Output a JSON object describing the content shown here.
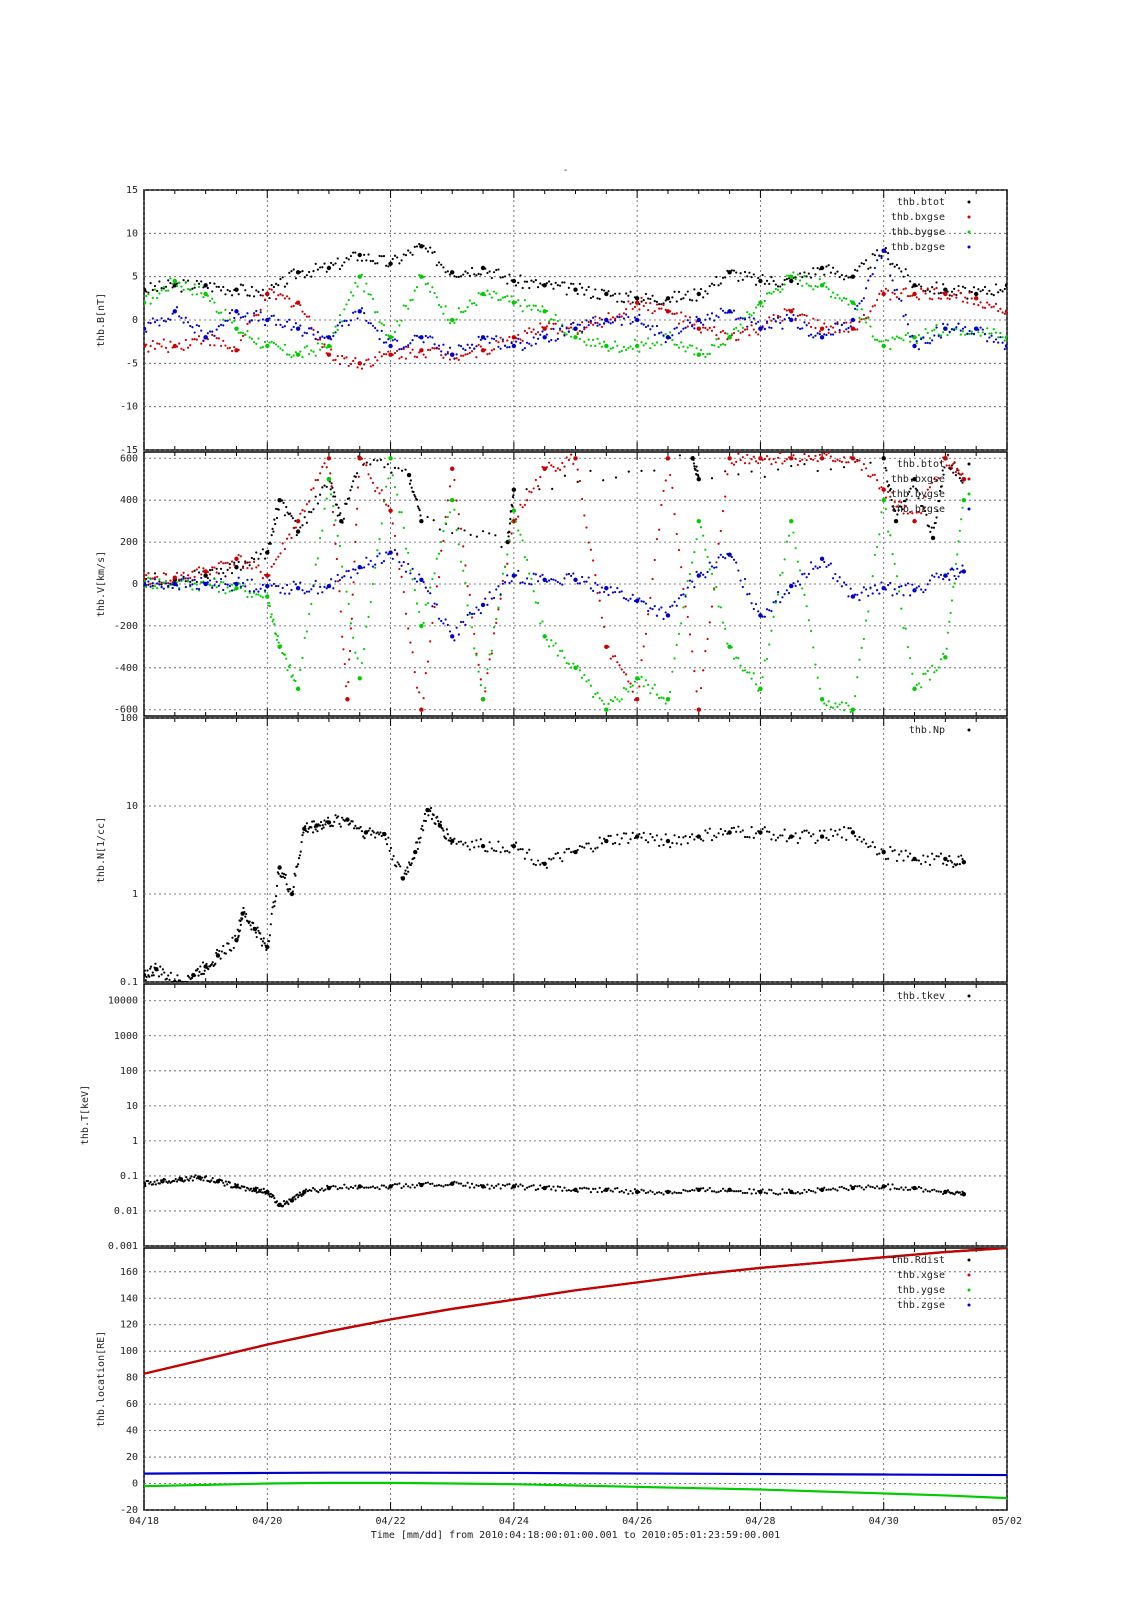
{
  "page_title": "-",
  "x_axis": {
    "tick_labels": [
      "04/18",
      "04/20",
      "04/22",
      "04/24",
      "04/26",
      "04/28",
      "04/30",
      "05/02"
    ],
    "range_days": [
      0,
      14
    ],
    "title": "Time [mm/dd]  from 2010:04:18:00:01:00.001  to  2010:05:01:23:59:00.001"
  },
  "colors": {
    "series1": "#000000",
    "series2": "#cc0000",
    "series3": "#00cc00",
    "series4": "#0000cc",
    "grid": "#555555"
  },
  "chart_data": [
    {
      "type": "scatter",
      "ylabel": "thb.B[nT]",
      "ylim": [
        -15,
        15
      ],
      "yscale": "linear",
      "yticks": [
        -15,
        -10,
        -5,
        0,
        5,
        10,
        15
      ],
      "legend_position": "top-right",
      "series": [
        {
          "name": "thb.btot",
          "color": "#000000",
          "x": [
            0,
            0.5,
            1,
            1.5,
            2,
            2.5,
            3,
            3.5,
            4,
            4.5,
            5,
            5.5,
            6,
            6.5,
            7,
            7.5,
            8,
            8.5,
            9,
            9.5,
            10,
            10.5,
            11,
            11.5,
            12,
            12.5,
            13,
            13.5,
            14
          ],
          "y": [
            3.5,
            4,
            4,
            3.5,
            3,
            5.5,
            6,
            7.5,
            6.5,
            8.5,
            5.5,
            6,
            4.5,
            4,
            3.5,
            3,
            2.5,
            2.5,
            3,
            5.5,
            4.5,
            4.5,
            6,
            5,
            8,
            4,
            3.5,
            3,
            4
          ]
        },
        {
          "name": "thb.bxgse",
          "color": "#cc0000",
          "x": [
            0,
            0.5,
            1,
            1.5,
            2,
            2.5,
            3,
            3.5,
            4,
            4.5,
            5,
            5.5,
            6,
            6.5,
            7,
            7.5,
            8,
            8.5,
            9,
            9.5,
            10,
            10.5,
            11,
            11.5,
            12,
            12.5,
            13,
            13.5,
            14
          ],
          "y": [
            -3,
            -3,
            -2,
            -3.5,
            3,
            2,
            -4,
            -5,
            -4,
            -3.5,
            -4,
            -3.5,
            -2,
            -1,
            -1,
            0,
            2,
            1,
            -1,
            -2,
            -1,
            1,
            -1,
            -1,
            3,
            3,
            3,
            2.5,
            1
          ]
        },
        {
          "name": "thb.bygse",
          "color": "#00cc00",
          "x": [
            0,
            0.5,
            1,
            1.5,
            2,
            2.5,
            3,
            3.5,
            4,
            4.5,
            5,
            5.5,
            6,
            6.5,
            7,
            7.5,
            8,
            8.5,
            9,
            9.5,
            10,
            10.5,
            11,
            11.5,
            12,
            12.5,
            13,
            13.5,
            14
          ],
          "y": [
            2,
            4.5,
            3,
            -1,
            -3,
            -4,
            -3,
            5,
            -2,
            5,
            0,
            3,
            2,
            1,
            -2,
            -3,
            -3,
            -2,
            -4,
            -2,
            2,
            5,
            4,
            2,
            -3,
            -2,
            -1,
            -1,
            -2
          ]
        },
        {
          "name": "thb.bzgse",
          "color": "#0000cc",
          "x": [
            0,
            0.5,
            1,
            1.5,
            2,
            2.5,
            3,
            3.5,
            4,
            4.5,
            5,
            5.5,
            6,
            6.5,
            7,
            7.5,
            8,
            8.5,
            9,
            9.5,
            10,
            10.5,
            11,
            11.5,
            12,
            12.5,
            13,
            13.5,
            14
          ],
          "y": [
            -1,
            1,
            -2,
            1,
            0,
            -1,
            -2,
            1,
            -3,
            -2,
            -4,
            -2,
            -3,
            -2,
            -1,
            0,
            0,
            -2,
            0,
            1,
            -1,
            0,
            -2,
            0,
            8,
            -3,
            -1,
            -1,
            -3
          ]
        }
      ]
    },
    {
      "type": "scatter",
      "ylabel": "thb.V[km/s]",
      "ylim": [
        -630,
        630
      ],
      "yscale": "linear",
      "yticks": [
        -600,
        -400,
        -200,
        0,
        200,
        400,
        600
      ],
      "legend_position": "top-right",
      "series": [
        {
          "name": "thb.btot",
          "color": "#000000",
          "x": [
            0,
            0.5,
            1,
            1.5,
            2,
            2.2,
            2.5,
            3,
            3.2,
            3.5,
            4.3,
            4.5,
            5.9,
            6,
            8.9,
            9,
            12,
            12.2,
            12.5,
            12.8,
            13,
            13.3
          ],
          "y": [
            20,
            20,
            40,
            80,
            150,
            400,
            250,
            500,
            300,
            600,
            520,
            300,
            200,
            450,
            600,
            500,
            600,
            300,
            500,
            220,
            600,
            500
          ]
        },
        {
          "name": "thb.bxgse",
          "color": "#cc0000",
          "x": [
            0,
            0.5,
            1,
            1.5,
            2,
            2.5,
            3,
            3.3,
            3.5,
            4,
            4.5,
            5,
            5.5,
            6,
            6.5,
            7,
            7.5,
            8,
            8.5,
            9,
            9.5,
            10,
            10.5,
            11,
            11.5,
            12,
            12.5,
            13,
            13.3
          ],
          "y": [
            20,
            30,
            60,
            120,
            40,
            300,
            600,
            -550,
            600,
            350,
            -600,
            550,
            -550,
            300,
            550,
            600,
            -300,
            -550,
            600,
            -600,
            600,
            600,
            600,
            600,
            600,
            450,
            300,
            600,
            500
          ]
        },
        {
          "name": "thb.bygse",
          "color": "#00cc00",
          "x": [
            0,
            0.5,
            1,
            1.5,
            2,
            2.2,
            2.5,
            3,
            3.5,
            4,
            4.5,
            5,
            5.5,
            6,
            6.5,
            7,
            7.5,
            8,
            8.5,
            9,
            9.5,
            10,
            10.5,
            11,
            11.5,
            12,
            12.5,
            13,
            13.3
          ],
          "y": [
            10,
            0,
            0,
            -20,
            -60,
            -300,
            -500,
            500,
            -450,
            600,
            -200,
            400,
            -550,
            350,
            -250,
            -400,
            -600,
            -450,
            -550,
            300,
            -300,
            -500,
            300,
            -550,
            -600,
            400,
            -500,
            -350,
            400
          ]
        },
        {
          "name": "thb.bzgse",
          "color": "#0000cc",
          "x": [
            0,
            0.5,
            1,
            1.5,
            2,
            2.5,
            3,
            3.5,
            4,
            4.5,
            5,
            5.5,
            6,
            6.5,
            7,
            7.5,
            8,
            8.5,
            9,
            9.5,
            10,
            10.5,
            11,
            11.5,
            12,
            12.5,
            13,
            13.3
          ],
          "y": [
            0,
            0,
            0,
            0,
            -10,
            -20,
            -10,
            80,
            150,
            20,
            -250,
            -100,
            40,
            20,
            20,
            -20,
            -80,
            -150,
            40,
            140,
            -150,
            -10,
            120,
            -60,
            -20,
            -30,
            40,
            60
          ]
        }
      ]
    },
    {
      "type": "scatter",
      "ylabel": "thb.N[1/cc]",
      "ylim": [
        0.1,
        100
      ],
      "yscale": "log",
      "yticks": [
        0.1,
        1,
        10,
        100
      ],
      "legend_position": "top-right",
      "series": [
        {
          "name": "thb.Np",
          "color": "#000000",
          "x": [
            0,
            0.2,
            0.5,
            0.8,
            1,
            1.2,
            1.5,
            1.6,
            1.8,
            2,
            2.2,
            2.4,
            2.6,
            2.8,
            3,
            3.3,
            3.6,
            3.9,
            4.2,
            4.4,
            4.6,
            4.8,
            5,
            5.5,
            6,
            6.5,
            7,
            7.5,
            8,
            8.5,
            9,
            9.5,
            10,
            10.5,
            11,
            11.5,
            12,
            12.5,
            13,
            13.3
          ],
          "x_note": "",
          "y": [
            0.12,
            0.14,
            0.1,
            0.12,
            0.15,
            0.2,
            0.3,
            0.6,
            0.4,
            0.25,
            2,
            1,
            5.5,
            6,
            6.5,
            7,
            5,
            4.8,
            1.5,
            3,
            9,
            6,
            4,
            3.5,
            3.5,
            2.2,
            3,
            4,
            4.5,
            4,
            4.5,
            5,
            5,
            4.5,
            4.5,
            5,
            3,
            2.5,
            2.5,
            2.3
          ]
        }
      ]
    },
    {
      "type": "scatter",
      "ylabel": "thb.T[keV]",
      "ylim": [
        0.001,
        30000
      ],
      "yscale": "log",
      "yticks": [
        0.001,
        0.01,
        0.1,
        1,
        10,
        100,
        1000,
        10000
      ],
      "ytick_labels": [
        "0.001",
        "0.01",
        "0.1",
        "1",
        "10",
        "100",
        "1000",
        "10000"
      ],
      "legend_position": "top-right",
      "series": [
        {
          "name": "thb.tkev",
          "color": "#000000",
          "x": [
            0,
            0.3,
            0.6,
            0.9,
            1.2,
            1.5,
            1.8,
            2,
            2.2,
            2.4,
            2.6,
            3,
            3.5,
            4,
            4.5,
            5,
            5.5,
            6,
            6.5,
            7,
            7.5,
            8,
            8.5,
            9,
            9.5,
            10,
            10.5,
            11,
            11.5,
            12,
            12.5,
            13,
            13.3
          ],
          "y": [
            0.06,
            0.07,
            0.08,
            0.09,
            0.07,
            0.05,
            0.04,
            0.035,
            0.015,
            0.02,
            0.035,
            0.045,
            0.05,
            0.05,
            0.055,
            0.06,
            0.05,
            0.05,
            0.045,
            0.04,
            0.04,
            0.035,
            0.035,
            0.04,
            0.04,
            0.035,
            0.035,
            0.04,
            0.045,
            0.05,
            0.045,
            0.035,
            0.03
          ]
        }
      ]
    },
    {
      "type": "line",
      "ylabel": "thb.location[RE]",
      "ylim": [
        -20,
        178
      ],
      "yscale": "linear",
      "yticks": [
        -20,
        0,
        20,
        40,
        60,
        80,
        100,
        120,
        140,
        160
      ],
      "legend_position": "top-right",
      "series": [
        {
          "name": "thb.Rdist",
          "color": "#000000",
          "x": [
            0,
            1,
            2,
            3,
            4,
            5,
            6,
            7,
            8,
            9,
            10,
            11,
            12,
            13,
            14
          ],
          "y": [
            83,
            94,
            105,
            115,
            124,
            132,
            139,
            146,
            152,
            158,
            163,
            167,
            171,
            175,
            178
          ]
        },
        {
          "name": "thb.xgse",
          "color": "#cc0000",
          "x": [
            0,
            1,
            2,
            3,
            4,
            5,
            6,
            7,
            8,
            9,
            10,
            11,
            12,
            13,
            14
          ],
          "y": [
            83,
            94,
            105,
            115,
            124,
            132,
            139,
            146,
            152,
            158,
            163,
            167,
            171,
            175,
            178
          ]
        },
        {
          "name": "thb.ygse",
          "color": "#00cc00",
          "x": [
            0,
            1,
            2,
            3,
            4,
            5,
            6,
            7,
            8,
            9,
            10,
            11,
            12,
            13,
            14
          ],
          "y": [
            -2,
            -1,
            0,
            0.5,
            0.5,
            0,
            -0.5,
            -1.5,
            -2.5,
            -3.5,
            -4.5,
            -6,
            -7.5,
            -9,
            -11
          ]
        },
        {
          "name": "thb.zgse",
          "color": "#0000cc",
          "x": [
            0,
            1,
            2,
            3,
            4,
            5,
            6,
            7,
            8,
            9,
            10,
            11,
            12,
            13,
            14
          ],
          "y": [
            7.5,
            7.8,
            8,
            8.2,
            8.2,
            8.1,
            8,
            7.8,
            7.6,
            7.4,
            7.2,
            7,
            6.8,
            6.6,
            6.4
          ]
        }
      ]
    }
  ]
}
